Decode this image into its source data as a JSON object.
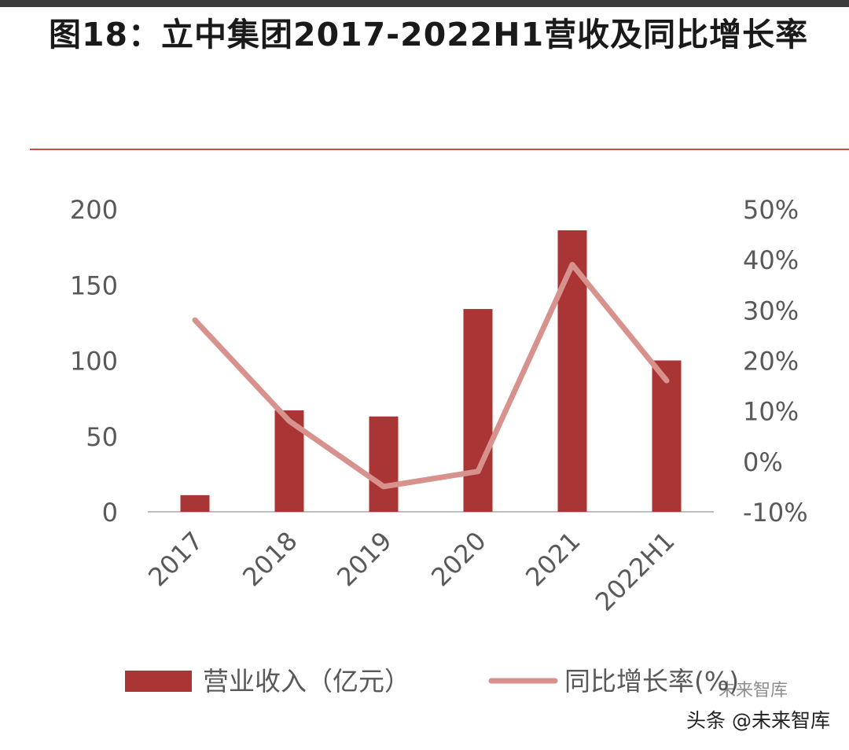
{
  "title": "图18：立中集团2017-2022H1营收及同比增长率",
  "colors": {
    "bar": "#a93535",
    "line": "#d8928e",
    "rule": "#c0504d",
    "axis": "#bfbfbf",
    "text": "#595959"
  },
  "chart_data": {
    "type": "bar+line",
    "categories": [
      "2017",
      "2018",
      "2019",
      "2020",
      "2021",
      "2022H1"
    ],
    "series": [
      {
        "name": "营业收入（亿元）",
        "type": "bar",
        "axis": "left",
        "values": [
          11,
          67,
          63,
          134,
          186,
          100
        ]
      },
      {
        "name": "同比增长率(%)",
        "type": "line",
        "axis": "right",
        "values": [
          28,
          8,
          -5,
          -2,
          39,
          16
        ]
      }
    ],
    "y_left": {
      "min": 0,
      "max": 200,
      "ticks": [
        "0",
        "50",
        "100",
        "150",
        "200"
      ]
    },
    "y_right": {
      "min": -10,
      "max": 50,
      "ticks": [
        "-10%",
        "0%",
        "10%",
        "20%",
        "30%",
        "40%",
        "50%"
      ]
    },
    "legend": [
      "营业收入（亿元）",
      "同比增长率(%)"
    ],
    "legend_position": "bottom"
  },
  "watermark": {
    "text": "头条 @未来智库",
    "faint": "未来智库"
  }
}
